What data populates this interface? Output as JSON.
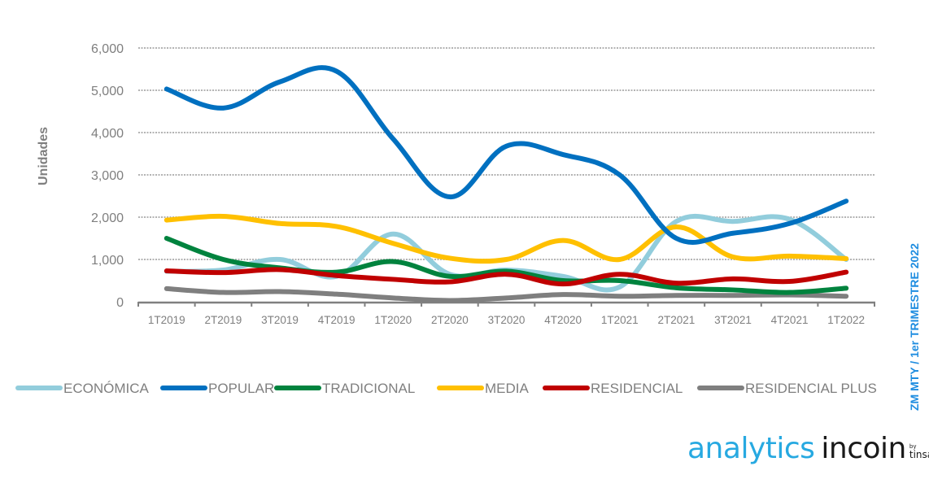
{
  "chart_data": {
    "type": "line",
    "title": "",
    "xlabel": "",
    "ylabel": "Unidades",
    "ylim": [
      0,
      6000
    ],
    "yticks": [
      0,
      1000,
      2000,
      3000,
      4000,
      5000,
      6000
    ],
    "ytick_labels": [
      "0",
      "1,000",
      "2,000",
      "3,000",
      "4,000",
      "5,000",
      "6,000"
    ],
    "grid": true,
    "legend_position": "bottom",
    "categories": [
      "1T2019",
      "2T2019",
      "3T2019",
      "4T2019",
      "1T2020",
      "2T2020",
      "3T2020",
      "4T2020",
      "1T2021",
      "2T2021",
      "3T2021",
      "4T2021",
      "1T2022"
    ],
    "series": [
      {
        "name": "ECONÓMICA",
        "color": "#92cddc",
        "values": [
          720,
          750,
          1000,
          600,
          1600,
          650,
          750,
          600,
          350,
          1900,
          1900,
          1950,
          1000
        ]
      },
      {
        "name": "POPULAR",
        "color": "#0070c0",
        "values": [
          5030,
          4580,
          5200,
          5450,
          3850,
          2480,
          3680,
          3480,
          3000,
          1500,
          1620,
          1850,
          2380
        ]
      },
      {
        "name": "TRADICIONAL",
        "color": "#00833e",
        "values": [
          1500,
          1000,
          800,
          700,
          950,
          600,
          720,
          500,
          500,
          330,
          280,
          220,
          320
        ]
      },
      {
        "name": "MEDIA",
        "color": "#ffc000",
        "values": [
          1930,
          2020,
          1850,
          1780,
          1380,
          1030,
          1000,
          1450,
          1000,
          1770,
          1060,
          1080,
          1020
        ]
      },
      {
        "name": "RESIDENCIAL",
        "color": "#c00000",
        "values": [
          730,
          690,
          760,
          620,
          530,
          470,
          650,
          420,
          650,
          440,
          540,
          480,
          700
        ]
      },
      {
        "name": "RESIDENCIAL PLUS",
        "color": "#7f7f7f",
        "values": [
          310,
          220,
          240,
          180,
          90,
          30,
          90,
          170,
          130,
          150,
          150,
          160,
          130
        ]
      }
    ]
  },
  "side_note": "ZM MTY  / 1er TRIMESTRE 2022",
  "logo": {
    "analytics": "analytics",
    "incoin": "incoin",
    "by": "by",
    "tinsa": "tinsa"
  }
}
